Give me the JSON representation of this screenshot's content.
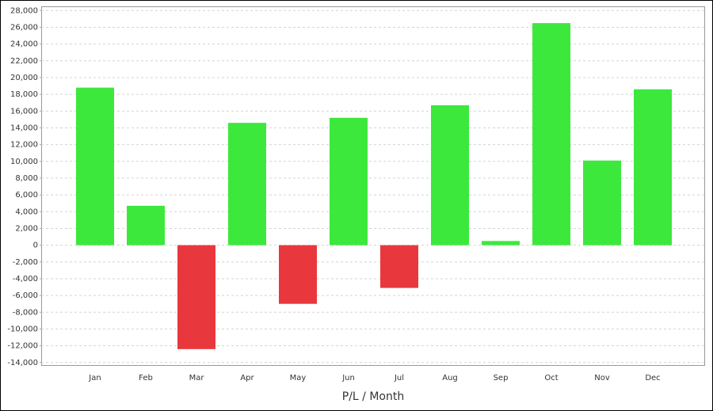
{
  "chart_data": {
    "type": "bar",
    "x_label": "P/L / Month",
    "categories": [
      "Jan",
      "Feb",
      "Mar",
      "Apr",
      "May",
      "Jun",
      "Jul",
      "Aug",
      "Sep",
      "Oct",
      "Nov",
      "Dec"
    ],
    "values": [
      18800,
      4700,
      -12400,
      14600,
      -7000,
      15200,
      -5100,
      16700,
      500,
      26500,
      10100,
      18600
    ],
    "positive_color": "#3de83d",
    "negative_color": "#e8383d",
    "ylim": [
      -14400,
      28500
    ],
    "yticks": [
      {
        "value": -14000,
        "label": "-14,000"
      },
      {
        "value": -12000,
        "label": "-12,000"
      },
      {
        "value": -10000,
        "label": "-10,000"
      },
      {
        "value": -8000,
        "label": "-8,000"
      },
      {
        "value": -6000,
        "label": "-6,000"
      },
      {
        "value": -4000,
        "label": "-4,000"
      },
      {
        "value": -2000,
        "label": "-2,000"
      },
      0,
      {
        "value": 2000,
        "label": "2,000"
      },
      {
        "value": 4000,
        "label": "4,000"
      },
      {
        "value": 6000,
        "label": "6,000"
      },
      {
        "value": 8000,
        "label": "8,000"
      },
      {
        "value": 10000,
        "label": "10,000"
      },
      {
        "value": 12000,
        "label": "12,000"
      },
      {
        "value": 14000,
        "label": "14,000"
      },
      {
        "value": 16000,
        "label": "16,000"
      },
      {
        "value": 18000,
        "label": "18,000"
      },
      {
        "value": 20000,
        "label": "20,000"
      },
      {
        "value": 22000,
        "label": "22,000"
      },
      {
        "value": 24000,
        "label": "24,000"
      },
      {
        "value": 26000,
        "label": "26,000"
      },
      {
        "value": 28000,
        "label": "28,000"
      }
    ],
    "grid": true
  }
}
